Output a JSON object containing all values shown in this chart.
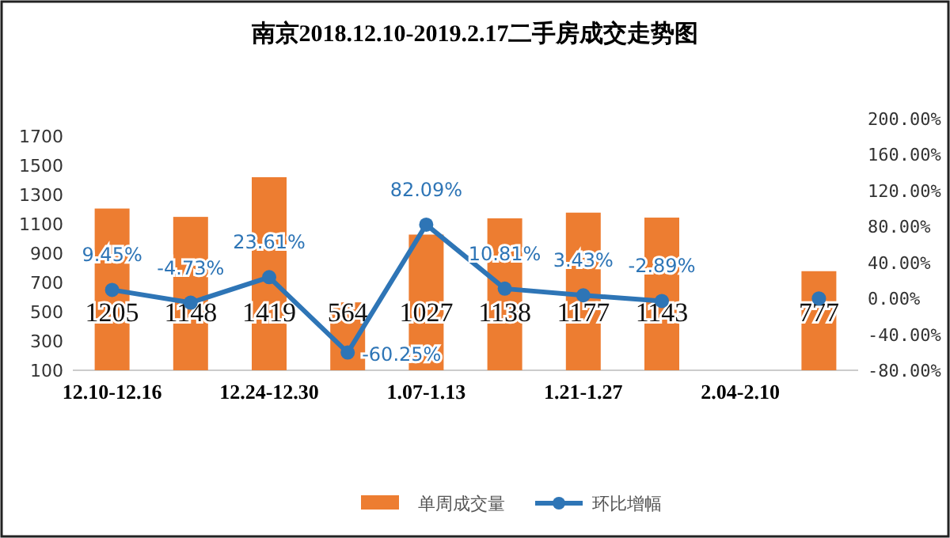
{
  "chart_data": {
    "type": "bar",
    "title": "南京2018.12.10-2019.2.17二手房成交走势图",
    "categories": [
      "12.10-12.16",
      null,
      "12.24-12.30",
      null,
      "1.07-1.13",
      null,
      "1.21-1.27",
      null,
      "2.04-2.10",
      null
    ],
    "series": [
      {
        "name": "单周成交量",
        "color": "#ed7d31",
        "values": [
          1205,
          1148,
          1419,
          564,
          1027,
          1138,
          1177,
          1143,
          null,
          777
        ],
        "data_labels": true
      },
      {
        "name": "环比增幅",
        "type": "line",
        "axis": "y2",
        "color": "#2e75b6",
        "marker": "circle",
        "values": [
          9.45,
          -4.73,
          23.61,
          -60.25,
          82.09,
          10.81,
          3.43,
          -2.89,
          null,
          0
        ],
        "value_labels": [
          "9.45%",
          "-4.73%",
          "23.61%",
          "-60.25%",
          "82.09%",
          "10.81%",
          "3.43%",
          "-2.89%",
          null,
          null
        ]
      }
    ],
    "ylim": [
      100,
      1700
    ],
    "yticks": [
      100,
      300,
      500,
      700,
      900,
      1100,
      1300,
      1500,
      1700
    ],
    "y2lim": [
      -80,
      200
    ],
    "y2ticks": [
      {
        "value": -80,
        "label": "-80.00%"
      },
      {
        "value": -40,
        "label": "-40.00%"
      },
      {
        "value": 0,
        "label": "0.00%"
      },
      {
        "value": 40,
        "label": "40.00%"
      },
      {
        "value": 80,
        "label": "80.00%"
      },
      {
        "value": 120,
        "label": "120.00%"
      },
      {
        "value": 160,
        "label": "160.00%"
      },
      {
        "value": 200,
        "label": "200.00%"
      }
    ],
    "grid": false,
    "legend": "bottom"
  }
}
